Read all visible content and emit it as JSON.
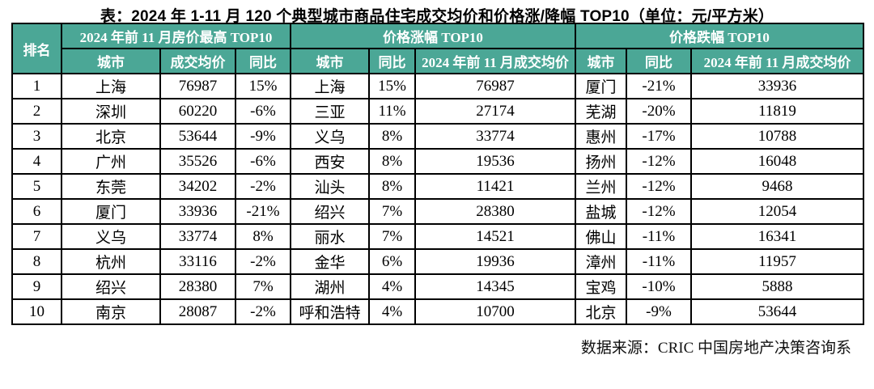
{
  "chart_data": {
    "type": "table",
    "title": "表：2024 年 1-11 月 120 个典型城市商品住宅成交均价和价格涨/降幅 TOP10（单位：元/平方米）",
    "unit": "元/平方米",
    "rank_header": "排名",
    "sections": [
      {
        "title": "2024 年前 11 月房价最高 TOP10",
        "columns": [
          "城市",
          "成交均价",
          "同比"
        ]
      },
      {
        "title": "价格涨幅 TOP10",
        "columns": [
          "城市",
          "同比",
          "2024 年前 11 月成交均价"
        ]
      },
      {
        "title": "价格跌幅 TOP10",
        "columns": [
          "城市",
          "同比",
          "2024 年前 11 月成交均价"
        ]
      }
    ],
    "rows": [
      {
        "rank": "1",
        "highest": [
          "上海",
          "76987",
          "15%"
        ],
        "gainers": [
          "上海",
          "15%",
          "76987"
        ],
        "decliners": [
          "厦门",
          "-21%",
          "33936"
        ]
      },
      {
        "rank": "2",
        "highest": [
          "深圳",
          "60220",
          "-6%"
        ],
        "gainers": [
          "三亚",
          "11%",
          "27174"
        ],
        "decliners": [
          "芜湖",
          "-20%",
          "11819"
        ]
      },
      {
        "rank": "3",
        "highest": [
          "北京",
          "53644",
          "-9%"
        ],
        "gainers": [
          "义乌",
          "8%",
          "33774"
        ],
        "decliners": [
          "惠州",
          "-17%",
          "10788"
        ]
      },
      {
        "rank": "4",
        "highest": [
          "广州",
          "35526",
          "-6%"
        ],
        "gainers": [
          "西安",
          "8%",
          "19536"
        ],
        "decliners": [
          "扬州",
          "-12%",
          "16048"
        ]
      },
      {
        "rank": "5",
        "highest": [
          "东莞",
          "34202",
          "-2%"
        ],
        "gainers": [
          "汕头",
          "8%",
          "11421"
        ],
        "decliners": [
          "兰州",
          "-12%",
          "9468"
        ]
      },
      {
        "rank": "6",
        "highest": [
          "厦门",
          "33936",
          "-21%"
        ],
        "gainers": [
          "绍兴",
          "7%",
          "28380"
        ],
        "decliners": [
          "盐城",
          "-12%",
          "12054"
        ]
      },
      {
        "rank": "7",
        "highest": [
          "义乌",
          "33774",
          "8%"
        ],
        "gainers": [
          "丽水",
          "7%",
          "14521"
        ],
        "decliners": [
          "佛山",
          "-11%",
          "16341"
        ]
      },
      {
        "rank": "8",
        "highest": [
          "杭州",
          "33116",
          "-2%"
        ],
        "gainers": [
          "金华",
          "6%",
          "19936"
        ],
        "decliners": [
          "漳州",
          "-11%",
          "11957"
        ]
      },
      {
        "rank": "9",
        "highest": [
          "绍兴",
          "28380",
          "7%"
        ],
        "gainers": [
          "湖州",
          "4%",
          "14345"
        ],
        "decliners": [
          "宝鸡",
          "-10%",
          "5888"
        ]
      },
      {
        "rank": "10",
        "highest": [
          "南京",
          "28087",
          "-2%"
        ],
        "gainers": [
          "呼和浩特",
          "4%",
          "10700"
        ],
        "decliners": [
          "北京",
          "-9%",
          "53644"
        ]
      }
    ],
    "source": "数据来源：CRIC 中国房地产决策咨询系"
  },
  "colors": {
    "header_bg": "#4BA796",
    "header_text": "#FFFFFF",
    "border": "#000000"
  }
}
